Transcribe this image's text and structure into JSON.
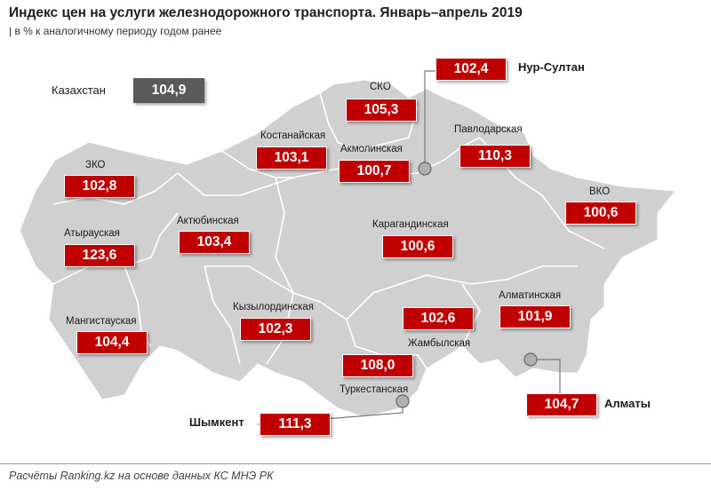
{
  "title": "Индекс цен на услуги железнодорожного транспорта. Январь–апрель 2019",
  "subtitle": "| в % к аналогичному периоду годом ранее",
  "kazakhstan": {
    "label": "Казахстан",
    "value": "104,9"
  },
  "regions": {
    "zko": {
      "label": "ЗКО",
      "value": "102,8"
    },
    "atyrau": {
      "label": "Атырауская",
      "value": "123,6"
    },
    "mangystau": {
      "label": "Мангистауская",
      "value": "104,4"
    },
    "aktobe": {
      "label": "Актюбинская",
      "value": "103,4"
    },
    "kostanay": {
      "label": "Костанайская",
      "value": "103,1"
    },
    "sko": {
      "label": "СКО",
      "value": "105,3"
    },
    "akmola": {
      "label": "Акмолинская",
      "value": "100,7"
    },
    "pavlodar": {
      "label": "Павлодарская",
      "value": "110,3"
    },
    "vko": {
      "label": "ВКО",
      "value": "100,6"
    },
    "karaganda": {
      "label": "Карагандинская",
      "value": "100,6"
    },
    "kyzylorda": {
      "label": "Кызылординская",
      "value": "102,3"
    },
    "zhambyl": {
      "label": "Жамбылская",
      "value": "102,6"
    },
    "almaty_region": {
      "label": "Алматинская",
      "value": "101,9"
    },
    "turkestan": {
      "label": "Туркестанская",
      "value": "108,0"
    }
  },
  "cities": {
    "nur_sultan": {
      "label": "Нур-Султан",
      "value": "102,4"
    },
    "almaty": {
      "label": "Алматы",
      "value": "104,7"
    },
    "shymkent": {
      "label": "Шымкент",
      "value": "111,3"
    }
  },
  "source": "Расчёты Ranking.kz на основе данных КС МНЭ РК",
  "colors": {
    "value_box": "#c00000",
    "kazakhstan_box": "#5a5a5a",
    "map_fill": "#d0d0d0",
    "map_border": "#ffffff"
  }
}
